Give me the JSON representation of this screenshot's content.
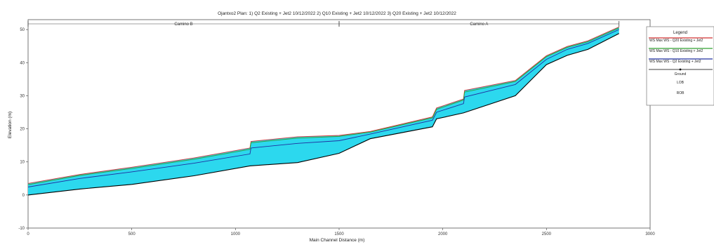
{
  "chart_data": {
    "type": "line",
    "title": "Ojantxo2    Plan:  1) Q2 Existing + Jet2   10/12/2022    2) Q10 Existing + Jet2   10/12/2022    3) Q20 Existing + Jet2   10/12/2022",
    "xlabel": "Main Channel Distance (m)",
    "ylabel": "Elevation (m)",
    "xlim": [
      0,
      3000
    ],
    "ylim": [
      -10,
      53
    ],
    "x_ticks": [
      0,
      500,
      1000,
      1500,
      2000,
      2500,
      3000
    ],
    "x_tick_labels": [
      "0",
      "500",
      "1000",
      "1500",
      "2000",
      "2500",
      "3000"
    ],
    "y_ticks": [
      -10,
      0,
      10,
      20,
      30,
      40,
      50
    ],
    "y_tick_labels": [
      "-10",
      "0",
      "10",
      "20",
      "30",
      "40",
      "50"
    ],
    "reaches": [
      {
        "name": "Camino B",
        "from": 0,
        "to": 1500
      },
      {
        "name": "Camino A",
        "from": 1500,
        "to": 2850
      }
    ],
    "legend_title": "Legend",
    "legend_placement": "right",
    "series": [
      {
        "name": "WS  Max WS - Q20 Existing + Jet2",
        "color": "#d03030",
        "x": [
          0,
          250,
          500,
          800,
          1070,
          1075,
          1300,
          1500,
          1650,
          1950,
          1970,
          2100,
          2105,
          2350,
          2500,
          2600,
          2700,
          2850
        ],
        "y": [
          3.5,
          6.2,
          8.4,
          11.2,
          14.2,
          16.2,
          17.6,
          18.0,
          19.2,
          23.6,
          26.3,
          29.0,
          31.6,
          34.6,
          42.1,
          44.9,
          46.6,
          50.8
        ]
      },
      {
        "name": "WS  Max WS - Q10 Existing + Jet2",
        "color": "#30a030",
        "x": [
          0,
          250,
          500,
          800,
          1070,
          1075,
          1300,
          1500,
          1650,
          1950,
          1970,
          2100,
          2105,
          2350,
          2500,
          2600,
          2700,
          2850
        ],
        "y": [
          3.1,
          5.9,
          8.0,
          10.8,
          13.8,
          15.8,
          17.2,
          17.7,
          19.0,
          23.3,
          25.9,
          28.7,
          31.1,
          34.3,
          41.8,
          44.6,
          46.3,
          50.5
        ]
      },
      {
        "name": "WS  Max WS - Q2 Existing + Jet2",
        "color": "#2030a0",
        "x": [
          0,
          250,
          500,
          800,
          1070,
          1075,
          1300,
          1500,
          1650,
          1950,
          1970,
          2100,
          2105,
          2350,
          2500,
          2600,
          2700,
          2850
        ],
        "y": [
          2.4,
          5.0,
          7.0,
          9.6,
          12.4,
          14.2,
          15.6,
          16.4,
          18.4,
          22.6,
          25.0,
          27.6,
          29.6,
          33.4,
          41.0,
          44.0,
          45.8,
          50.0
        ]
      },
      {
        "name": "Ground",
        "color": "#000000",
        "x": [
          0,
          250,
          500,
          800,
          1070,
          1300,
          1500,
          1650,
          1950,
          1970,
          2100,
          2350,
          2500,
          2600,
          2700,
          2850
        ],
        "y": [
          0.0,
          1.8,
          3.2,
          5.8,
          8.8,
          9.8,
          12.6,
          17.0,
          20.6,
          23.0,
          24.8,
          30.0,
          39.4,
          42.2,
          44.0,
          48.8
        ]
      },
      {
        "name": "LOB",
        "color": "#000000",
        "x": [],
        "y": []
      },
      {
        "name": "ROB",
        "color": "#000000",
        "x": [],
        "y": []
      }
    ]
  }
}
